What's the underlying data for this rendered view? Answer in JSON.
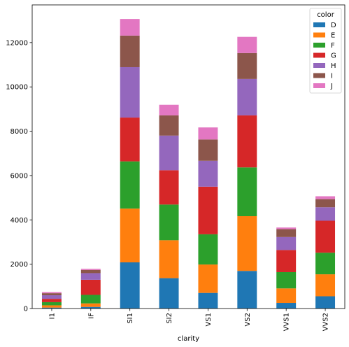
{
  "chart_data": {
    "type": "bar",
    "stacked": true,
    "categories": [
      "I1",
      "IF",
      "SI1",
      "SI2",
      "VS1",
      "VS2",
      "VVS1",
      "VVS2"
    ],
    "xlabel": "clarity",
    "ylabel": "",
    "ylim": [
      0,
      13700
    ],
    "yticks": [
      0,
      2000,
      4000,
      6000,
      8000,
      10000,
      12000
    ],
    "ytick_labels": [
      "0",
      "2000",
      "4000",
      "6000",
      "8000",
      "10000",
      "12000"
    ],
    "legend": {
      "title": "color",
      "placement": "top-right"
    },
    "series": [
      {
        "name": "D",
        "color": "#1f77b4",
        "values": [
          42,
          73,
          2083,
          1370,
          705,
          1697,
          252,
          553
        ]
      },
      {
        "name": "E",
        "color": "#ff7f0e",
        "values": [
          102,
          158,
          2426,
          1713,
          1281,
          2470,
          656,
          991
        ]
      },
      {
        "name": "F",
        "color": "#2ca02c",
        "values": [
          143,
          385,
          2131,
          1609,
          1364,
          2201,
          734,
          975
        ]
      },
      {
        "name": "G",
        "color": "#d62728",
        "values": [
          150,
          681,
          1976,
          1548,
          2148,
          2347,
          999,
          1443
        ]
      },
      {
        "name": "H",
        "color": "#9467bd",
        "values": [
          162,
          299,
          2275,
          1563,
          1169,
          1643,
          585,
          608
        ]
      },
      {
        "name": "I",
        "color": "#8c564b",
        "values": [
          92,
          143,
          1424,
          912,
          962,
          1169,
          355,
          365
        ]
      },
      {
        "name": "J",
        "color": "#e377c2",
        "values": [
          50,
          51,
          750,
          479,
          542,
          731,
          74,
          131
        ]
      }
    ]
  }
}
